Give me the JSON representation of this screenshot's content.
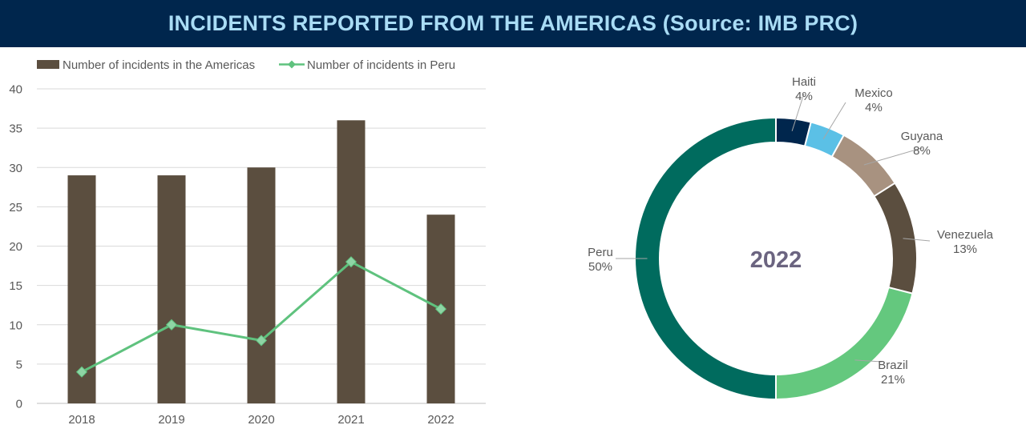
{
  "title": "INCIDENTS REPORTED FROM THE AMERICAS (Source: IMB PRC)",
  "colors": {
    "banner": "#00264d",
    "title": "#a9dcf5",
    "bar": "#5b4e3f",
    "line": "#5fc27e",
    "grid": "#d9d9d9"
  },
  "chart_data": [
    {
      "type": "bar",
      "title": "",
      "categories": [
        "2018",
        "2019",
        "2020",
        "2021",
        "2022"
      ],
      "series": [
        {
          "name": "Number of incidents in the Americas",
          "type": "bar",
          "values": [
            29,
            29,
            30,
            36,
            24
          ],
          "color": "#5b4e3f"
        },
        {
          "name": "Number of incidents in Peru",
          "type": "line",
          "values": [
            4,
            10,
            8,
            18,
            12
          ],
          "color": "#5fc27e"
        }
      ],
      "yticks": [
        "0",
        "5",
        "10",
        "15",
        "20",
        "25",
        "30",
        "35",
        "40"
      ],
      "ylim": [
        0,
        40
      ],
      "grid": true,
      "legend": "top-left"
    },
    {
      "type": "pie",
      "variant": "donut",
      "center_label": "2022",
      "slices": [
        {
          "label": "Haiti",
          "value": 4,
          "display": "4%",
          "color": "#00264d"
        },
        {
          "label": "Mexico",
          "value": 4,
          "display": "4%",
          "color": "#5bc0e6"
        },
        {
          "label": "Guyana",
          "value": 8,
          "display": "8%",
          "color": "#a89280"
        },
        {
          "label": "Venezuela",
          "value": 13,
          "display": "13%",
          "color": "#5b4e3f"
        },
        {
          "label": "Brazil",
          "value": 21,
          "display": "21%",
          "color": "#64c87e"
        },
        {
          "label": "Peru",
          "value": 50,
          "display": "50%",
          "color": "#006b5e"
        }
      ]
    }
  ]
}
